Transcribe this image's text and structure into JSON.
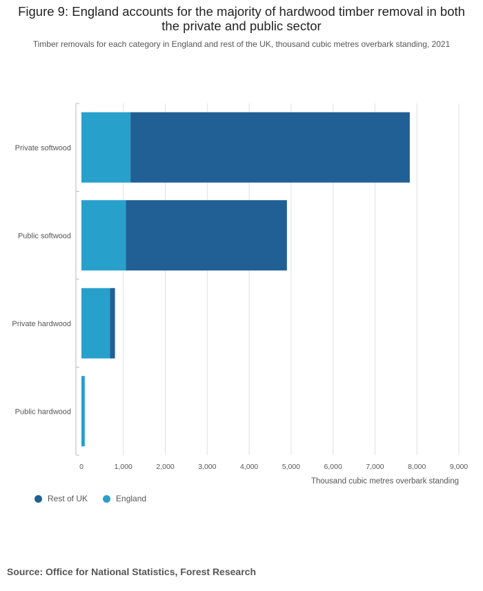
{
  "header": {
    "title": "Figure 9: England accounts for the majority of hardwood timber removal in both the private and public sector",
    "subtitle": "Timber removals for each category in England and rest of the UK, thousand cubic metres overbark standing, 2021"
  },
  "footer": {
    "source": "Source: Office for National Statistics, Forest Research"
  },
  "colors": {
    "rest_of_uk": "#206095",
    "england": "#27a0cc",
    "grid": "#e0e0e0",
    "axis": "#bbbbbb"
  },
  "chart_data": {
    "type": "bar",
    "orientation": "horizontal",
    "stacked": true,
    "categories": [
      "Private softwood",
      "Public softwood",
      "Private hardwood",
      "Public hardwood"
    ],
    "series": [
      {
        "name": "England",
        "values": [
          1170,
          1060,
          680,
          80
        ]
      },
      {
        "name": "Rest of UK",
        "values": [
          6660,
          3840,
          120,
          0
        ]
      }
    ],
    "xlabel": "Thousand cubic metres overbark standing",
    "ylabel": "",
    "xlim": [
      0,
      9000
    ],
    "xticks": [
      0,
      1000,
      2000,
      3000,
      4000,
      5000,
      6000,
      7000,
      8000,
      9000
    ],
    "xtick_labels": [
      "0",
      "1,000",
      "2,000",
      "3,000",
      "4,000",
      "5,000",
      "6,000",
      "7,000",
      "8,000",
      "9,000"
    ],
    "legend": [
      "Rest of UK",
      "England"
    ],
    "legend_position": "bottom-left",
    "grid": true
  }
}
